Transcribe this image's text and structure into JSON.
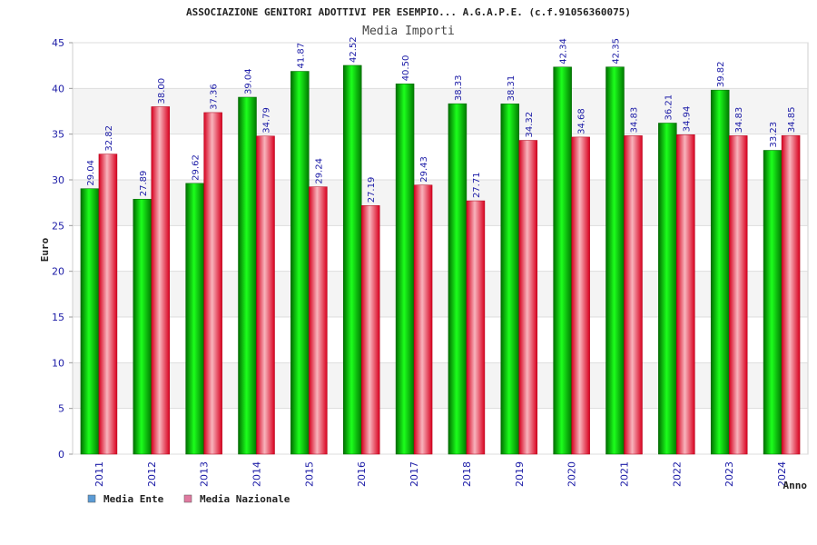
{
  "chart_data": {
    "type": "bar",
    "title": "ASSOCIAZIONE GENITORI ADOTTIVI PER ESEMPIO... A.G.A.P.E. (c.f.91056360075)",
    "subtitle": "Media Importi",
    "xlabel": "Anno",
    "ylabel": "Euro",
    "ylim": [
      0,
      45
    ],
    "ytick_step": 5,
    "grid": true,
    "legend": "bottom-left",
    "categories": [
      "2011",
      "2012",
      "2013",
      "2014",
      "2015",
      "2016",
      "2017",
      "2018",
      "2019",
      "2020",
      "2021",
      "2022",
      "2023",
      "2024"
    ],
    "series": [
      {
        "name": "Media Ente",
        "values": [
          29.04,
          27.89,
          29.62,
          39.04,
          41.87,
          42.52,
          40.5,
          38.33,
          38.31,
          42.34,
          42.35,
          36.21,
          39.82,
          33.23
        ],
        "labels": [
          "29.04",
          "27.89",
          "29.62",
          "39.04",
          "41.87",
          "42.52",
          "40.50",
          "38.33",
          "38.31",
          "42.34",
          "42.35",
          "36.21",
          "39.82",
          "33.23"
        ],
        "color": "#00a000",
        "legend_color": "#5b9bd5"
      },
      {
        "name": "Media Nazionale",
        "values": [
          32.82,
          38.0,
          37.36,
          34.79,
          29.24,
          27.19,
          29.43,
          27.71,
          34.32,
          34.68,
          34.83,
          34.94,
          34.83,
          34.85
        ],
        "labels": [
          "32.82",
          "38.00",
          "37.36",
          "34.79",
          "29.24",
          "27.19",
          "29.43",
          "27.71",
          "34.32",
          "34.68",
          "34.83",
          "34.94",
          "34.83",
          "34.85"
        ],
        "color": "#e8203a",
        "legend_color": "#e07aa0"
      }
    ]
  }
}
